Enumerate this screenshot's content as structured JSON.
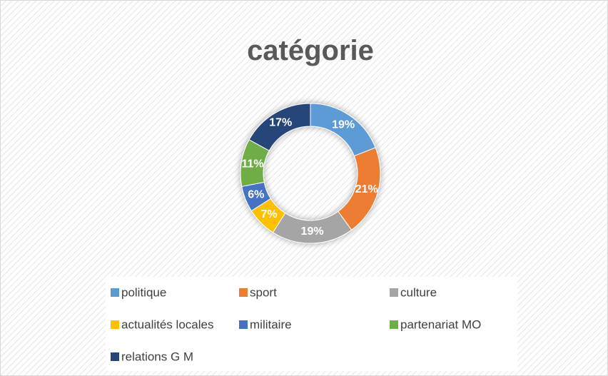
{
  "chart_data": {
    "type": "donut",
    "title": "catégorie",
    "categories": [
      "politique",
      "sport",
      "culture",
      "actualités locales",
      "militaire",
      "partenariat MO",
      "relations G M"
    ],
    "values": [
      19,
      21,
      19,
      7,
      6,
      11,
      17
    ],
    "value_labels": [
      "19%",
      "21%",
      "19%",
      "7%",
      "6%",
      "11%",
      "17%"
    ],
    "colors": [
      "#5b9bd5",
      "#ed7d31",
      "#a5a5a5",
      "#ffc000",
      "#4472c4",
      "#70ad47",
      "#264478"
    ],
    "legend": "bottom"
  }
}
